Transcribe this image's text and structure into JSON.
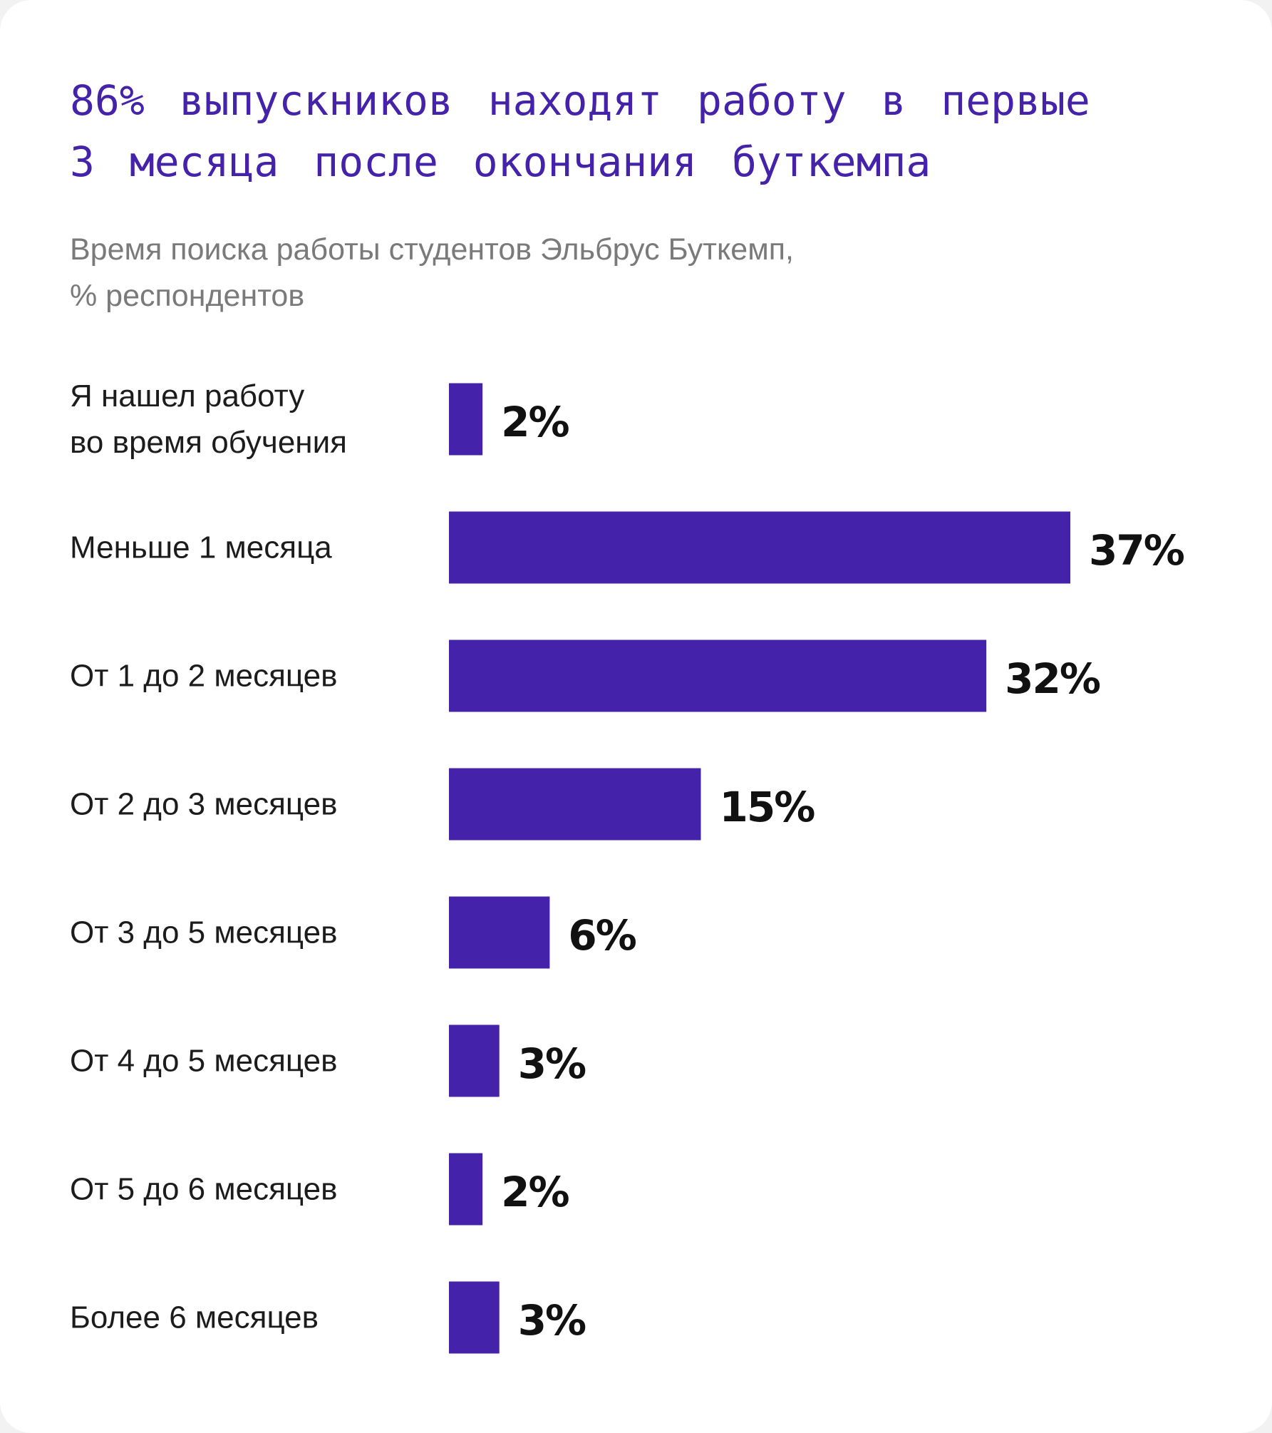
{
  "title_lines": [
    "86% выпускников находят работу в первые",
    "3 месяца после окончания буткемпа"
  ],
  "subtitle_lines": [
    "Время поиска работы студентов Эльбрус Буткемп,",
    "% респондентов"
  ],
  "colors": {
    "bar": "#4522aa",
    "title": "#4522aa",
    "subtitle": "#7a7a7a",
    "label": "#1c1c1c",
    "value": "#111111"
  },
  "chart_data": {
    "type": "bar",
    "orientation": "horizontal",
    "categories": [
      [
        "Я нашел работу",
        "во время обучения"
      ],
      [
        "Меньше 1 месяца"
      ],
      [
        "От 1 до 2 месяцев"
      ],
      [
        "От 2 до 3 месяцев"
      ],
      [
        "От 3 до 5 месяцев"
      ],
      [
        "От 4 до 5 месяцев"
      ],
      [
        "От 5 до 6 месяцев"
      ],
      [
        "Более 6 месяцев"
      ]
    ],
    "values": [
      2,
      37,
      32,
      15,
      6,
      3,
      2,
      3
    ],
    "value_labels": [
      "2%",
      "37%",
      "32%",
      "15%",
      "6%",
      "3%",
      "2%",
      "3%"
    ],
    "xlim": [
      0,
      37
    ],
    "grid": false,
    "legend": "none"
  }
}
